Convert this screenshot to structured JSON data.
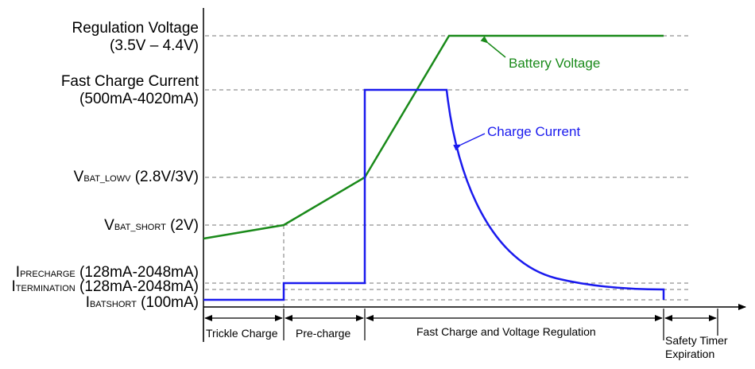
{
  "labels": {
    "regulation_voltage": {
      "line1": "Regulation Voltage",
      "line2": "(3.5V – 4.4V)"
    },
    "fast_charge_current": {
      "line1": "Fast Charge Current",
      "line2": "(500mA-4020mA)"
    },
    "vbat_lowv": {
      "main": "V",
      "sub": "BAT_LOWV",
      "value": " (2.8V/3V)"
    },
    "vbat_short": {
      "main": "V",
      "sub": "BAT_SHORT",
      "value": " (2V)"
    },
    "iprecharge": {
      "main": "I",
      "sub": "PRECHARGE",
      "value": " (128mA-2048mA)"
    },
    "itermination": {
      "main": "I",
      "sub": "TERMINATION",
      "value": " (128mA-2048mA)"
    },
    "ibatshort": {
      "main": "I",
      "sub": "BATSHORT",
      "value": " (100mA)"
    }
  },
  "annotations": {
    "battery_voltage": "Battery Voltage",
    "charge_current": "Charge Current"
  },
  "phases": {
    "trickle": "Trickle Charge",
    "precharge": "Pre-charge",
    "fast": "Fast Charge and Voltage Regulation",
    "safety_line1": "Safety Timer",
    "safety_line2": "Expiration"
  },
  "colors": {
    "battery_voltage": "#1a8a1a",
    "charge_current": "#1a1aee",
    "axis": "#000000",
    "guide": "#777777"
  }
}
